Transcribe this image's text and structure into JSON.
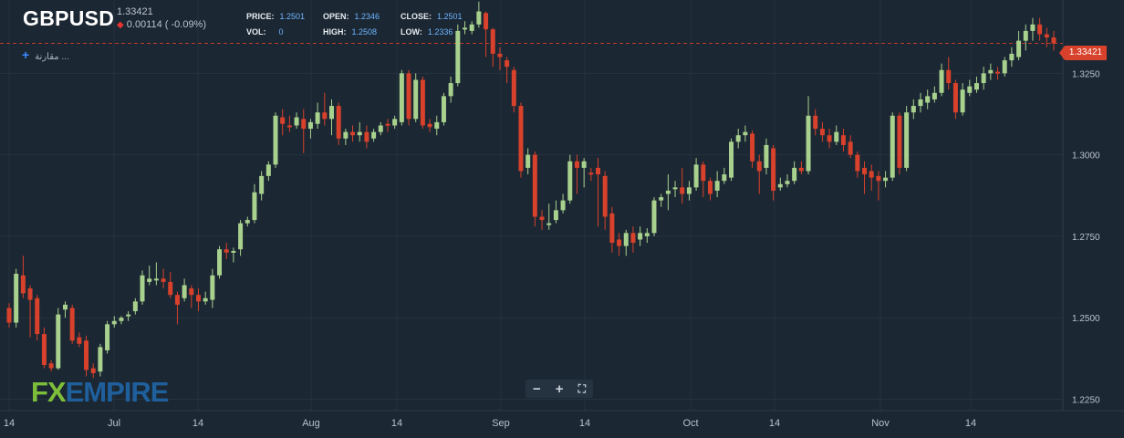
{
  "header": {
    "symbol": "GBPUSD",
    "last_price": "1.33421",
    "change": "0.00114 ( -0.09%)",
    "stats": {
      "price_label": "PRICE:",
      "price_value": "1.2501",
      "vol_label": "VOL:",
      "vol_value": "0",
      "open_label": "OPEN:",
      "open_value": "1.2346",
      "high_label": "HIGH:",
      "high_value": "1.2508",
      "close_label": "CLOSE:",
      "close_value": "1.2501",
      "low_label": "LOW:",
      "low_value": "1.2336"
    },
    "compare_label": "مقارنة ..."
  },
  "price_tag": "1.33421",
  "zoom_controls": {
    "minus": "−",
    "plus": "+",
    "fullscreen": "⛶"
  },
  "logo": {
    "fx": "FX",
    "empire": "EMPIRE"
  },
  "colors": {
    "bg": "#1b2733",
    "up": "#a9d18e",
    "down": "#d8412b",
    "grid": "#26323e",
    "axis_text": "#b9c3cc"
  },
  "chart_data": {
    "type": "candlestick",
    "y_ticks": [
      "1.3250",
      "1.3000",
      "1.2750",
      "1.2500",
      "1.2250"
    ],
    "y_tick_values": [
      1.325,
      1.3,
      1.275,
      1.25,
      1.225
    ],
    "x_ticks": [
      "14",
      "Jul",
      "14",
      "Aug",
      "14",
      "Sep",
      "14",
      "Oct",
      "14",
      "Nov",
      "14"
    ],
    "ylim": [
      1.2215,
      1.3475
    ],
    "last_price_line": 1.33421,
    "grid": true,
    "candles": [
      [
        1.253,
        1.2485,
        1.2545,
        1.247
      ],
      [
        1.2485,
        1.2635,
        1.265,
        1.247
      ],
      [
        1.263,
        1.2575,
        1.269,
        1.256
      ],
      [
        1.259,
        1.2555,
        1.26,
        1.244
      ],
      [
        1.256,
        1.245,
        1.257,
        1.243
      ],
      [
        1.245,
        1.2355,
        1.247,
        1.2345
      ],
      [
        1.236,
        1.2345,
        1.237,
        1.2335
      ],
      [
        1.2345,
        1.251,
        1.253,
        1.234
      ],
      [
        1.2525,
        1.254,
        1.255,
        1.25
      ],
      [
        1.253,
        1.243,
        1.254,
        1.242
      ],
      [
        1.244,
        1.242,
        1.2455,
        1.241
      ],
      [
        1.243,
        1.234,
        1.2445,
        1.232
      ],
      [
        1.2345,
        1.233,
        1.236,
        1.2315
      ],
      [
        1.2335,
        1.241,
        1.242,
        1.232
      ],
      [
        1.24,
        1.248,
        1.249,
        1.239
      ],
      [
        1.248,
        1.249,
        1.2505,
        1.247
      ],
      [
        1.249,
        1.25,
        1.2505,
        1.248
      ],
      [
        1.2505,
        1.251,
        1.252,
        1.249
      ],
      [
        1.252,
        1.255,
        1.256,
        1.251
      ],
      [
        1.255,
        1.263,
        1.2645,
        1.254
      ],
      [
        1.261,
        1.262,
        1.266,
        1.26
      ],
      [
        1.2615,
        1.262,
        1.267,
        1.26
      ],
      [
        1.262,
        1.261,
        1.265,
        1.259
      ],
      [
        1.261,
        1.257,
        1.264,
        1.256
      ],
      [
        1.257,
        1.254,
        1.258,
        1.248
      ],
      [
        1.256,
        1.26,
        1.262,
        1.255
      ],
      [
        1.259,
        1.257,
        1.26,
        1.253
      ],
      [
        1.257,
        1.255,
        1.259,
        1.252
      ],
      [
        1.255,
        1.256,
        1.258,
        1.254
      ],
      [
        1.2555,
        1.263,
        1.265,
        1.253
      ],
      [
        1.263,
        1.271,
        1.272,
        1.262
      ],
      [
        1.271,
        1.27,
        1.273,
        1.268
      ],
      [
        1.27,
        1.2705,
        1.2715,
        1.267
      ],
      [
        1.271,
        1.279,
        1.28,
        1.269
      ],
      [
        1.279,
        1.28,
        1.281,
        1.278
      ],
      [
        1.28,
        1.2885,
        1.291,
        1.279
      ],
      [
        1.288,
        1.2935,
        1.295,
        1.286
      ],
      [
        1.2935,
        1.297,
        1.298,
        1.292
      ],
      [
        1.297,
        1.312,
        1.313,
        1.296
      ],
      [
        1.3115,
        1.3095,
        1.314,
        1.306
      ],
      [
        1.309,
        1.3085,
        1.312,
        1.307
      ],
      [
        1.309,
        1.3115,
        1.313,
        1.308
      ],
      [
        1.311,
        1.308,
        1.314,
        1.3005
      ],
      [
        1.308,
        1.31,
        1.311,
        1.305
      ],
      [
        1.3095,
        1.313,
        1.316,
        1.308
      ],
      [
        1.313,
        1.311,
        1.319,
        1.309
      ],
      [
        1.311,
        1.315,
        1.317,
        1.306
      ],
      [
        1.315,
        1.305,
        1.316,
        1.303
      ],
      [
        1.305,
        1.307,
        1.308,
        1.303
      ],
      [
        1.307,
        1.306,
        1.309,
        1.304
      ],
      [
        1.306,
        1.307,
        1.31,
        1.304
      ],
      [
        1.307,
        1.304,
        1.309,
        1.302
      ],
      [
        1.305,
        1.307,
        1.308,
        1.304
      ],
      [
        1.307,
        1.309,
        1.31,
        1.306
      ],
      [
        1.3095,
        1.309,
        1.311,
        1.307
      ],
      [
        1.309,
        1.311,
        1.312,
        1.308
      ],
      [
        1.31,
        1.325,
        1.326,
        1.309
      ],
      [
        1.325,
        1.311,
        1.326,
        1.309
      ],
      [
        1.311,
        1.323,
        1.325,
        1.31
      ],
      [
        1.323,
        1.309,
        1.324,
        1.308
      ],
      [
        1.3095,
        1.3085,
        1.311,
        1.307
      ],
      [
        1.308,
        1.31,
        1.312,
        1.306
      ],
      [
        1.31,
        1.318,
        1.319,
        1.309
      ],
      [
        1.318,
        1.322,
        1.324,
        1.316
      ],
      [
        1.322,
        1.338,
        1.34,
        1.321
      ],
      [
        1.3385,
        1.339,
        1.341,
        1.337
      ],
      [
        1.338,
        1.34,
        1.341,
        1.337
      ],
      [
        1.34,
        1.344,
        1.347,
        1.339
      ],
      [
        1.3435,
        1.3385,
        1.344,
        1.33
      ],
      [
        1.3385,
        1.331,
        1.339,
        1.327
      ],
      [
        1.331,
        1.33,
        1.333,
        1.326
      ],
      [
        1.329,
        1.327,
        1.33,
        1.322
      ],
      [
        1.326,
        1.315,
        1.327,
        1.313
      ],
      [
        1.315,
        1.295,
        1.316,
        1.293
      ],
      [
        1.296,
        1.3,
        1.302,
        1.294
      ],
      [
        1.3,
        1.281,
        1.301,
        1.278
      ],
      [
        1.281,
        1.28,
        1.283,
        1.277
      ],
      [
        1.279,
        1.279,
        1.285,
        1.277
      ],
      [
        1.28,
        1.283,
        1.286,
        1.279
      ],
      [
        1.283,
        1.286,
        1.288,
        1.282
      ],
      [
        1.286,
        1.298,
        1.3,
        1.285
      ],
      [
        1.298,
        1.296,
        1.3,
        1.288
      ],
      [
        1.296,
        1.298,
        1.299,
        1.29
      ],
      [
        1.2945,
        1.294,
        1.296,
        1.292
      ],
      [
        1.296,
        1.294,
        1.299,
        1.278
      ],
      [
        1.2935,
        1.281,
        1.295,
        1.277
      ],
      [
        1.282,
        1.273,
        1.284,
        1.27
      ],
      [
        1.274,
        1.272,
        1.276,
        1.269
      ],
      [
        1.272,
        1.276,
        1.277,
        1.269
      ],
      [
        1.276,
        1.273,
        1.278,
        1.27
      ],
      [
        1.274,
        1.276,
        1.278,
        1.272
      ],
      [
        1.275,
        1.276,
        1.2775,
        1.273
      ],
      [
        1.276,
        1.286,
        1.287,
        1.275
      ],
      [
        1.286,
        1.287,
        1.288,
        1.284
      ],
      [
        1.288,
        1.289,
        1.294,
        1.283
      ],
      [
        1.2895,
        1.29,
        1.292,
        1.287
      ],
      [
        1.29,
        1.288,
        1.296,
        1.285
      ],
      [
        1.288,
        1.29,
        1.292,
        1.286
      ],
      [
        1.29,
        1.297,
        1.299,
        1.289
      ],
      [
        1.297,
        1.292,
        1.298,
        1.287
      ],
      [
        1.292,
        1.288,
        1.293,
        1.286
      ],
      [
        1.289,
        1.292,
        1.295,
        1.287
      ],
      [
        1.292,
        1.294,
        1.296,
        1.291
      ],
      [
        1.293,
        1.304,
        1.305,
        1.292
      ],
      [
        1.304,
        1.306,
        1.308,
        1.302
      ],
      [
        1.306,
        1.307,
        1.309,
        1.304
      ],
      [
        1.3065,
        1.298,
        1.3075,
        1.296
      ],
      [
        1.298,
        1.295,
        1.3,
        1.288
      ],
      [
        1.296,
        1.303,
        1.305,
        1.294
      ],
      [
        1.302,
        1.289,
        1.303,
        1.286
      ],
      [
        1.29,
        1.291,
        1.293,
        1.289
      ],
      [
        1.291,
        1.292,
        1.294,
        1.29
      ],
      [
        1.292,
        1.296,
        1.298,
        1.291
      ],
      [
        1.296,
        1.295,
        1.298,
        1.294
      ],
      [
        1.295,
        1.312,
        1.318,
        1.294
      ],
      [
        1.312,
        1.308,
        1.314,
        1.306
      ],
      [
        1.308,
        1.306,
        1.31,
        1.304
      ],
      [
        1.306,
        1.304,
        1.308,
        1.302
      ],
      [
        1.304,
        1.307,
        1.309,
        1.303
      ],
      [
        1.306,
        1.303,
        1.308,
        1.301
      ],
      [
        1.304,
        1.3,
        1.306,
        1.299
      ],
      [
        1.3,
        1.295,
        1.301,
        1.293
      ],
      [
        1.296,
        1.294,
        1.298,
        1.288
      ],
      [
        1.295,
        1.293,
        1.297,
        1.289
      ],
      [
        1.2935,
        1.292,
        1.295,
        1.286
      ],
      [
        1.292,
        1.293,
        1.295,
        1.29
      ],
      [
        1.293,
        1.312,
        1.313,
        1.292
      ],
      [
        1.312,
        1.296,
        1.313,
        1.294
      ],
      [
        1.296,
        1.313,
        1.315,
        1.295
      ],
      [
        1.313,
        1.315,
        1.317,
        1.311
      ],
      [
        1.315,
        1.317,
        1.319,
        1.313
      ],
      [
        1.316,
        1.318,
        1.32,
        1.314
      ],
      [
        1.317,
        1.319,
        1.321,
        1.316
      ],
      [
        1.319,
        1.326,
        1.328,
        1.318
      ],
      [
        1.326,
        1.322,
        1.33,
        1.32
      ],
      [
        1.322,
        1.313,
        1.323,
        1.311
      ],
      [
        1.313,
        1.32,
        1.322,
        1.312
      ],
      [
        1.319,
        1.321,
        1.323,
        1.318
      ],
      [
        1.32,
        1.322,
        1.324,
        1.319
      ],
      [
        1.322,
        1.325,
        1.327,
        1.32
      ],
      [
        1.325,
        1.326,
        1.328,
        1.323
      ],
      [
        1.3255,
        1.325,
        1.327,
        1.323
      ],
      [
        1.325,
        1.329,
        1.33,
        1.324
      ],
      [
        1.329,
        1.331,
        1.333,
        1.327
      ],
      [
        1.33,
        1.335,
        1.338,
        1.329
      ],
      [
        1.335,
        1.338,
        1.34,
        1.332
      ],
      [
        1.338,
        1.34,
        1.342,
        1.335
      ],
      [
        1.34,
        1.337,
        1.342,
        1.335
      ],
      [
        1.337,
        1.336,
        1.339,
        1.333
      ],
      [
        1.336,
        1.3342,
        1.338,
        1.332
      ]
    ]
  }
}
